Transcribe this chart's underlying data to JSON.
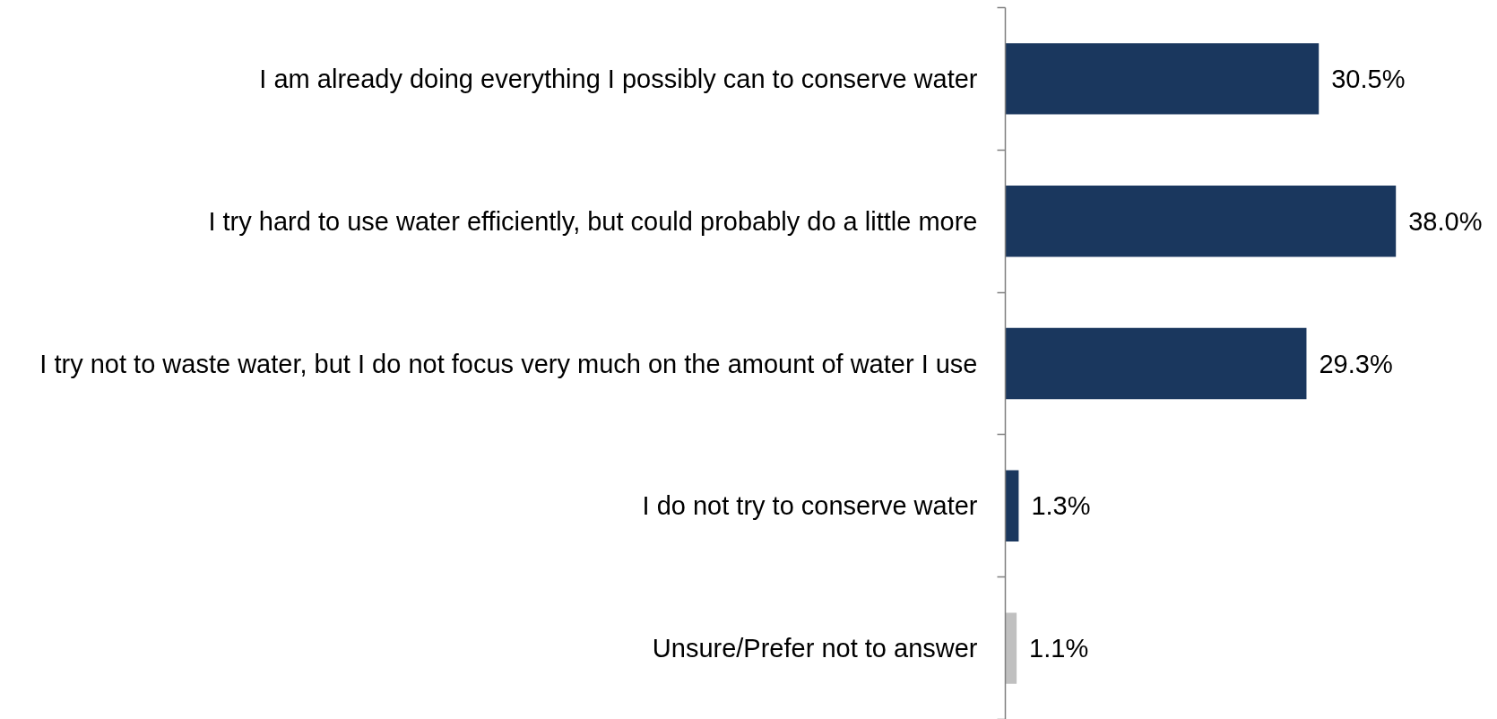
{
  "chart_data": {
    "type": "bar",
    "orientation": "horizontal",
    "categories": [
      "I am already doing everything I possibly can to conserve water",
      "I try hard to use water efficiently, but could probably do a little more",
      "I try not to waste water, but I do not focus very much on the amount of water I use",
      "I do not try to conserve water",
      "Unsure/Prefer not to answer"
    ],
    "values": [
      30.5,
      38.0,
      29.3,
      1.3,
      1.1
    ],
    "colors": [
      "#1a375e",
      "#1a375e",
      "#1a375e",
      "#1a375e",
      "#c0c0c0"
    ],
    "value_labels": [
      "30.5%",
      "38.0%",
      "29.3%",
      "1.3%",
      "1.1%"
    ],
    "tick_labels": "y"
  }
}
